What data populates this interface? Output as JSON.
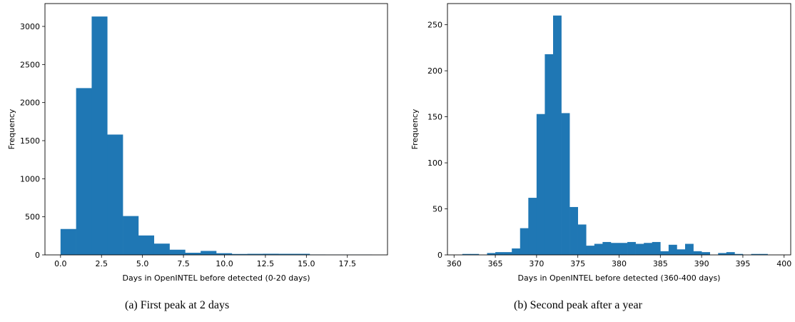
{
  "chart_data": [
    {
      "type": "bar",
      "caption": "(a) First peak at 2 days",
      "xlabel": "Days in OpenINTEL before detected (0-20 days)",
      "ylabel": "Frequency",
      "xlim": [
        -0.95,
        19.95
      ],
      "ylim": [
        0,
        3300
      ],
      "xticks": [
        0.0,
        2.5,
        5.0,
        7.5,
        10.0,
        12.5,
        15.0,
        17.5
      ],
      "xtick_labels": [
        "0.0",
        "2.5",
        "5.0",
        "7.5",
        "10.0",
        "12.5",
        "15.0",
        "17.5"
      ],
      "yticks": [
        0,
        500,
        1000,
        1500,
        2000,
        2500,
        3000
      ],
      "ytick_labels": [
        "0",
        "500",
        "1000",
        "1500",
        "2000",
        "2500",
        "3000"
      ],
      "bin_edges": [
        0,
        0.95,
        1.9,
        2.85,
        3.8,
        4.75,
        5.7,
        6.65,
        7.6,
        8.55,
        9.5,
        10.45,
        11.4,
        12.35,
        13.3,
        14.25,
        15.2,
        16.15,
        17.1,
        18.05,
        19.0
      ],
      "values": [
        340,
        2190,
        3130,
        1580,
        510,
        255,
        148,
        68,
        28,
        52,
        22,
        12,
        14,
        15,
        14,
        14,
        5,
        4,
        4,
        4
      ],
      "color": "#1f77b4"
    },
    {
      "type": "bar",
      "caption": "(b) Second peak after a year",
      "xlabel": "Days in OpenINTEL before detected (360-400 days)",
      "ylabel": "Frequency",
      "xlim": [
        359.2,
        400.8
      ],
      "ylim": [
        0,
        273
      ],
      "xticks": [
        360,
        365,
        370,
        375,
        380,
        385,
        390,
        395,
        400
      ],
      "xtick_labels": [
        "360",
        "365",
        "370",
        "375",
        "380",
        "385",
        "390",
        "395",
        "400"
      ],
      "yticks": [
        0,
        50,
        100,
        150,
        200,
        250
      ],
      "ytick_labels": [
        "0",
        "50",
        "100",
        "150",
        "200",
        "250"
      ],
      "bin_edges": [
        361,
        362,
        363,
        364,
        365,
        366,
        367,
        368,
        369,
        370,
        371,
        372,
        373,
        374,
        375,
        376,
        377,
        378,
        379,
        380,
        381,
        382,
        383,
        384,
        385,
        386,
        387,
        388,
        389,
        390,
        391,
        392,
        393,
        394,
        395,
        396,
        397,
        398,
        399
      ],
      "values": [
        1,
        1,
        0,
        2,
        3,
        3,
        7,
        29,
        62,
        153,
        218,
        260,
        154,
        52,
        33,
        10,
        12,
        14,
        13,
        13,
        14,
        12,
        13,
        14,
        4,
        11,
        6,
        12,
        4,
        3,
        0,
        2,
        3,
        1,
        0,
        1,
        1,
        0
      ],
      "color": "#1f77b4"
    }
  ]
}
